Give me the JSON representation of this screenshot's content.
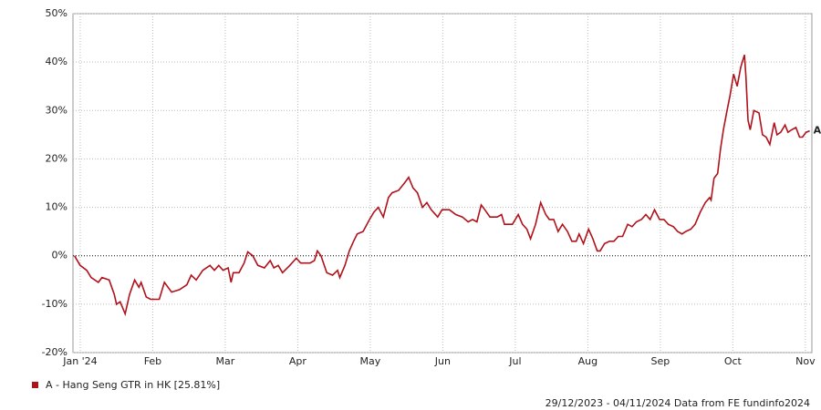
{
  "chart_data": {
    "type": "line",
    "x": [
      -0.08,
      0,
      0.09,
      0.15,
      0.25,
      0.3,
      0.4,
      0.47,
      0.5,
      0.55,
      0.62,
      0.68,
      0.75,
      0.81,
      0.84,
      0.91,
      0.97,
      1.09,
      1.16,
      1.26,
      1.37,
      1.47,
      1.53,
      1.6,
      1.69,
      1.79,
      1.85,
      1.91,
      1.97,
      2.04,
      2.08,
      2.11,
      2.19,
      2.26,
      2.31,
      2.38,
      2.45,
      2.54,
      2.62,
      2.67,
      2.73,
      2.79,
      2.89,
      2.98,
      3.04,
      3.17,
      3.23,
      3.27,
      3.32,
      3.4,
      3.48,
      3.55,
      3.58,
      3.65,
      3.71,
      3.77,
      3.82,
      3.9,
      3.99,
      4.05,
      4.11,
      4.18,
      4.25,
      4.3,
      4.39,
      4.47,
      4.53,
      4.59,
      4.65,
      4.72,
      4.78,
      4.84,
      4.93,
      4.99,
      5.09,
      5.18,
      5.27,
      5.35,
      5.41,
      5.47,
      5.53,
      5.58,
      5.65,
      5.75,
      5.81,
      5.85,
      5.96,
      6.04,
      6.1,
      6.16,
      6.21,
      6.28,
      6.35,
      6.42,
      6.47,
      6.53,
      6.59,
      6.65,
      6.72,
      6.78,
      6.84,
      6.88,
      6.94,
      7.01,
      7.07,
      7.13,
      7.17,
      7.23,
      7.3,
      7.36,
      7.42,
      7.48,
      7.55,
      7.61,
      7.67,
      7.74,
      7.8,
      7.86,
      7.92,
      7.99,
      8.05,
      8.11,
      8.18,
      8.24,
      8.3,
      8.35,
      8.42,
      8.48,
      8.55,
      8.62,
      8.68,
      8.7,
      8.74,
      8.79,
      8.83,
      8.87,
      8.92,
      8.96,
      9.01,
      9.06,
      9.11,
      9.16,
      9.18,
      9.21,
      9.24,
      9.29,
      9.36,
      9.41,
      9.46,
      9.51,
      9.57,
      9.61,
      9.66,
      9.72,
      9.76,
      9.81,
      9.87,
      9.92,
      9.96,
      10.01,
      10.06
    ],
    "series": [
      {
        "name": "A - Hang Seng GTR in HK [25.81%]",
        "end_label": "A",
        "color": "#b0121b",
        "values": [
          0,
          -2,
          -3,
          -4.5,
          -5.5,
          -4.5,
          -5,
          -8,
          -10,
          -9.5,
          -12,
          -8,
          -5,
          -6.5,
          -5.5,
          -8.5,
          -9,
          -9,
          -5.5,
          -7.5,
          -7,
          -6,
          -4,
          -5,
          -3,
          -2,
          -3,
          -2,
          -3,
          -2.5,
          -5.5,
          -3.5,
          -3.5,
          -1.5,
          0.8,
          0,
          -2,
          -2.5,
          -1,
          -2.5,
          -2,
          -3.5,
          -2,
          -0.5,
          -1.5,
          -1.5,
          -1,
          1,
          0,
          -3.5,
          -4,
          -3,
          -4.5,
          -2,
          1,
          3,
          4.5,
          5,
          7.5,
          9,
          10,
          8,
          12,
          13,
          13.5,
          15,
          16.2,
          14,
          13,
          10,
          11,
          9.5,
          8,
          9.5,
          9.5,
          8.5,
          8,
          7,
          7.5,
          7,
          10.5,
          9.5,
          8,
          8,
          8.5,
          6.5,
          6.5,
          8.5,
          6.5,
          5.5,
          3.5,
          6.5,
          11,
          8.5,
          7.5,
          7.5,
          5,
          6.5,
          5,
          3,
          3,
          4.5,
          2.5,
          5.5,
          3.5,
          1,
          1,
          2.5,
          3,
          3,
          4,
          4,
          6.5,
          6,
          7,
          7.5,
          8.5,
          7.5,
          9.5,
          7.5,
          7.5,
          6.5,
          6,
          5,
          4.5,
          5,
          5.5,
          6.5,
          9,
          11,
          12,
          11.5,
          16,
          17,
          22,
          26,
          30,
          33,
          37.5,
          35,
          39,
          41.5,
          37,
          28,
          26,
          30,
          29.5,
          25,
          24.5,
          23,
          27.5,
          25,
          25.5,
          27,
          25.5,
          26,
          26.5,
          24.5,
          24.5,
          25.5,
          25.81
        ]
      }
    ],
    "xlim": [
      -0.1,
      10.09
    ],
    "xticks": [
      {
        "value": 0,
        "label": "Jan '24"
      },
      {
        "value": 1,
        "label": "Feb"
      },
      {
        "value": 2,
        "label": "Mar"
      },
      {
        "value": 3,
        "label": "Apr"
      },
      {
        "value": 4,
        "label": "May"
      },
      {
        "value": 5,
        "label": "Jun"
      },
      {
        "value": 6,
        "label": "Jul"
      },
      {
        "value": 7,
        "label": "Aug"
      },
      {
        "value": 8,
        "label": "Sep"
      },
      {
        "value": 9,
        "label": "Oct"
      },
      {
        "value": 10,
        "label": "Nov"
      }
    ],
    "ylim": [
      -20,
      50
    ],
    "yticks": [
      {
        "value": -20,
        "label": "-20%"
      },
      {
        "value": -10,
        "label": "-10%"
      },
      {
        "value": 0,
        "label": "0%"
      },
      {
        "value": 10,
        "label": "10%"
      },
      {
        "value": 20,
        "label": "20%"
      },
      {
        "value": 30,
        "label": "30%"
      },
      {
        "value": 40,
        "label": "40%"
      },
      {
        "value": 50,
        "label": "50%"
      }
    ],
    "grid": true,
    "footer": "29/12/2023 - 04/11/2024 Data from FE fundinfo2024"
  }
}
